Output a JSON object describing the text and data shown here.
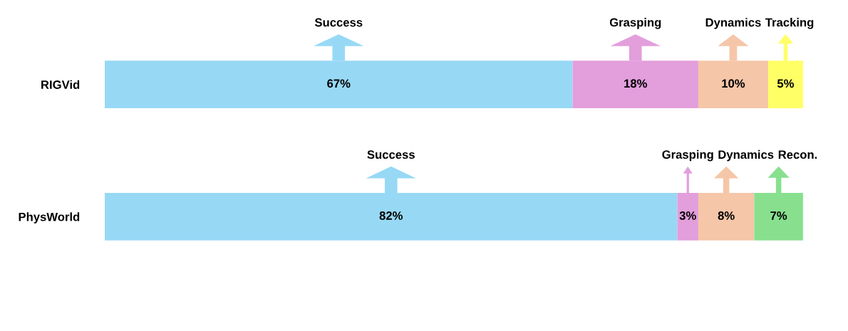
{
  "chart_data": {
    "type": "bar",
    "orientation": "horizontal",
    "stacked": true,
    "categories": [
      "RIGVid",
      "PhysWorld"
    ],
    "series": [
      {
        "name": "Success",
        "color": "#97d9f5",
        "values": [
          67,
          82
        ],
        "value_labels": [
          "67%",
          "82%"
        ]
      },
      {
        "name": "Grasping",
        "color": "#e39edc",
        "values": [
          18,
          3
        ],
        "value_labels": [
          "18%",
          "3%"
        ]
      },
      {
        "name": "Dynamics",
        "color": "#f5c6a8",
        "values": [
          10,
          8
        ],
        "value_labels": [
          "10%",
          "8%"
        ]
      },
      {
        "name": "Tracking",
        "color": "#ffff66",
        "values": [
          5,
          null
        ],
        "value_labels": [
          "5%",
          null
        ]
      },
      {
        "name": "Recon.",
        "color": "#88e08f",
        "values": [
          null,
          7
        ],
        "value_labels": [
          null,
          "7%"
        ]
      }
    ]
  }
}
